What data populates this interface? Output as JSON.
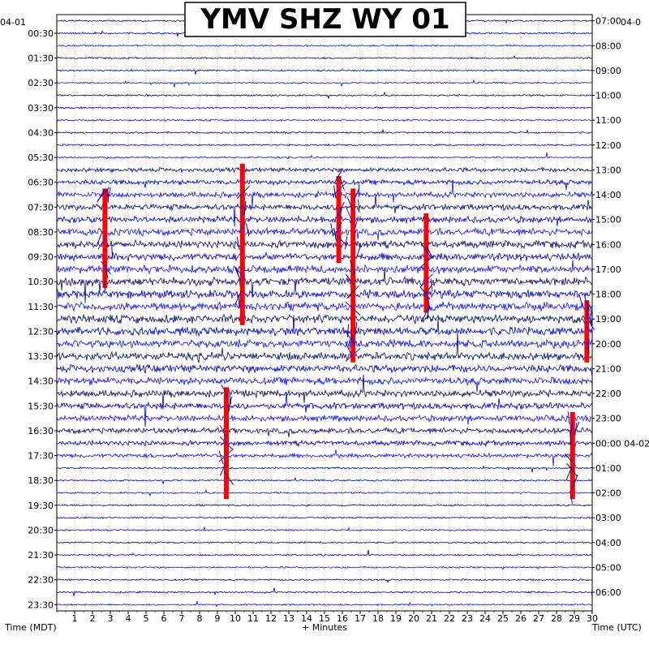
{
  "chart_data": {
    "type": "line",
    "title": "YMV SHZ WY 01",
    "xlabel": "+ Minutes",
    "left_axis_label": "Time (MDT)",
    "right_axis_label": "Time (UTC)",
    "left_date": "04-01",
    "right_date": "04-0",
    "right_date_rollover": "04-02",
    "x_ticks": [
      "1",
      "2",
      "3",
      "4",
      "5",
      "6",
      "7",
      "8",
      "9",
      "10",
      "11",
      "12",
      "13",
      "14",
      "15",
      "16",
      "17",
      "18",
      "19",
      "20",
      "21",
      "22",
      "23",
      "24",
      "25",
      "26",
      "27",
      "28",
      "29",
      "30"
    ],
    "xlim": [
      0,
      30
    ],
    "rows_per_day": 48,
    "left_tick_labels": [
      "00:30",
      "01:30",
      "02:30",
      "03:30",
      "04:30",
      "05:30",
      "06:30",
      "07:30",
      "08:30",
      "09:30",
      "10:30",
      "11:30",
      "12:30",
      "13:30",
      "14:30",
      "15:30",
      "16:30",
      "17:30",
      "18:30",
      "19:30",
      "20:30",
      "21:30",
      "22:30",
      "23:30"
    ],
    "right_tick_labels": [
      "07:00",
      "08:00",
      "09:00",
      "10:00",
      "11:00",
      "12:00",
      "13:00",
      "14:00",
      "15:00",
      "16:00",
      "17:00",
      "18:00",
      "19:00",
      "20:00",
      "21:00",
      "22:00",
      "23:00",
      "00:00",
      "01:00",
      "02:00",
      "03:00",
      "04:00",
      "05:00",
      "06:00"
    ],
    "trace_colors": [
      "#0a0a6e",
      "#0000cc",
      "#1414f0"
    ],
    "clip_color": "#ff0000",
    "activity_bands": [
      {
        "rows": [
          12,
          35
        ],
        "level": "high",
        "description_hidden": true
      }
    ],
    "clipped_events": [
      {
        "minute": 2.7,
        "row_start": 14,
        "row_end": 21
      },
      {
        "minute": 10.4,
        "row_start": 12,
        "row_end": 24
      },
      {
        "minute": 15.8,
        "row_start": 13,
        "row_end": 19
      },
      {
        "minute": 16.6,
        "row_start": 14,
        "row_end": 21
      },
      {
        "minute": 20.7,
        "row_start": 16,
        "row_end": 23
      },
      {
        "minute": 9.5,
        "row_start": 30,
        "row_end": 38
      },
      {
        "minute": 28.9,
        "row_start": 32,
        "row_end": 38
      },
      {
        "minute": 16.6,
        "row_start": 21,
        "row_end": 27
      },
      {
        "minute": 29.7,
        "row_start": 23,
        "row_end": 27
      }
    ]
  }
}
